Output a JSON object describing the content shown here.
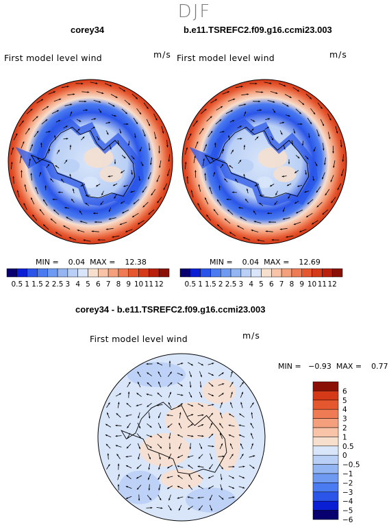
{
  "season": "DJF",
  "colors": {
    "abs_scale": [
      "#08006e",
      "#0a1fd4",
      "#2a55e8",
      "#4a7bf0",
      "#6f9af2",
      "#93b5f2",
      "#b9cff5",
      "#d9e6fa",
      "#f7dfce",
      "#f8c3a6",
      "#f4a07c",
      "#ef7b55",
      "#e5572f",
      "#d53a18",
      "#b8200c",
      "#8a0f04"
    ],
    "diff_scale": [
      "#08006e",
      "#0a1fd4",
      "#2a55e8",
      "#4a7bf0",
      "#6f9af2",
      "#93b5f2",
      "#b9cff5",
      "#d9e6fa",
      "#f7dfce",
      "#f8c3a6",
      "#f4a07c",
      "#ef7b55",
      "#e5572f",
      "#d53a18",
      "#8a0f04"
    ]
  },
  "chart_data": [
    {
      "type": "heatmap",
      "case_title": "corey34",
      "variable": "First model level wind",
      "units": "m/s",
      "projection": "south polar stereographic with wind vectors",
      "min_max_label": "MIN =    0.04  MAX =    12.38",
      "min": 0.04,
      "max": 12.38,
      "colorbar_ticks": [
        "0.5",
        "1",
        "1.5",
        "2",
        "2.5",
        "3",
        "4",
        "5",
        "6",
        "7",
        "8",
        "9",
        "10",
        "11",
        "12"
      ]
    },
    {
      "type": "heatmap",
      "case_title": "b.e11.TSREFC2.f09.g16.ccmi23.003",
      "variable": "First model level wind",
      "units": "m/s",
      "projection": "south polar stereographic with wind vectors",
      "min_max_label": "MIN =    0.04  MAX =    12.69",
      "min": 0.04,
      "max": 12.69,
      "colorbar_ticks": [
        "0.5",
        "1",
        "1.5",
        "2",
        "2.5",
        "3",
        "4",
        "5",
        "6",
        "7",
        "8",
        "9",
        "10",
        "11",
        "12"
      ]
    },
    {
      "type": "heatmap",
      "case_title": "corey34 - b.e11.TSREFC2.f09.g16.ccmi23.003",
      "variable": "First model level wind",
      "units": "m/s",
      "projection": "south polar stereographic with wind vectors",
      "min_max_label": "MIN =   −0.93  MAX =    0.77",
      "min": -0.93,
      "max": 0.77,
      "colorbar_ticks": [
        "6",
        "5",
        "4",
        "3",
        "2",
        "1",
        "0.5",
        "0",
        "−0.5",
        "−1",
        "−2",
        "−3",
        "−4",
        "−5",
        "−6"
      ]
    }
  ]
}
